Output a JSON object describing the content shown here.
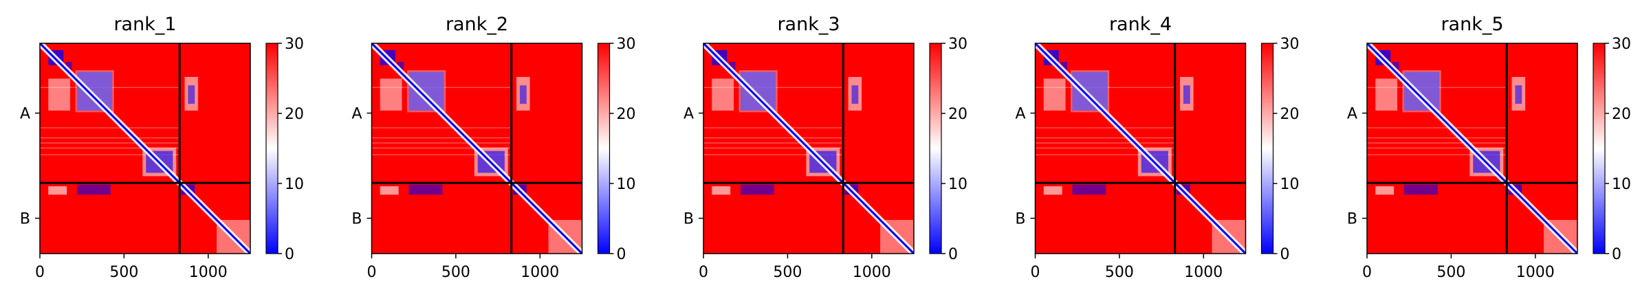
{
  "chart_data": [
    {
      "type": "heatmap",
      "title": "rank_1",
      "x_ticks": [
        0,
        500,
        1000
      ],
      "y_tick_labels": [
        "A",
        "B"
      ],
      "chain_break": 830,
      "length": 1250,
      "xlim": [
        0,
        1250
      ],
      "colorbar": {
        "min": 0,
        "max": 30,
        "ticks": [
          0,
          10,
          20,
          30
        ],
        "colormap": "bwr"
      }
    },
    {
      "type": "heatmap",
      "title": "rank_2",
      "x_ticks": [
        0,
        500,
        1000
      ],
      "y_tick_labels": [
        "A",
        "B"
      ],
      "chain_break": 830,
      "length": 1250,
      "xlim": [
        0,
        1250
      ],
      "colorbar": {
        "min": 0,
        "max": 30,
        "ticks": [
          0,
          10,
          20,
          30
        ],
        "colormap": "bwr"
      }
    },
    {
      "type": "heatmap",
      "title": "rank_3",
      "x_ticks": [
        0,
        500,
        1000
      ],
      "y_tick_labels": [
        "A",
        "B"
      ],
      "chain_break": 830,
      "length": 1250,
      "xlim": [
        0,
        1250
      ],
      "colorbar": {
        "min": 0,
        "max": 30,
        "ticks": [
          0,
          10,
          20,
          30
        ],
        "colormap": "bwr"
      }
    },
    {
      "type": "heatmap",
      "title": "rank_4",
      "x_ticks": [
        0,
        500,
        1000
      ],
      "y_tick_labels": [
        "A",
        "B"
      ],
      "chain_break": 830,
      "length": 1250,
      "xlim": [
        0,
        1250
      ],
      "colorbar": {
        "min": 0,
        "max": 30,
        "ticks": [
          0,
          10,
          20,
          30
        ],
        "colormap": "bwr"
      }
    },
    {
      "type": "heatmap",
      "title": "rank_5",
      "x_ticks": [
        0,
        500,
        1000
      ],
      "y_tick_labels": [
        "A",
        "B"
      ],
      "chain_break": 830,
      "length": 1250,
      "xlim": [
        0,
        1250
      ],
      "colorbar": {
        "min": 0,
        "max": 30,
        "ticks": [
          0,
          10,
          20,
          30
        ],
        "colormap": "bwr"
      }
    }
  ],
  "colors": {
    "high": "#ff0000",
    "mid": "#ffffff",
    "low": "#0000ff",
    "axis": "#000000"
  }
}
